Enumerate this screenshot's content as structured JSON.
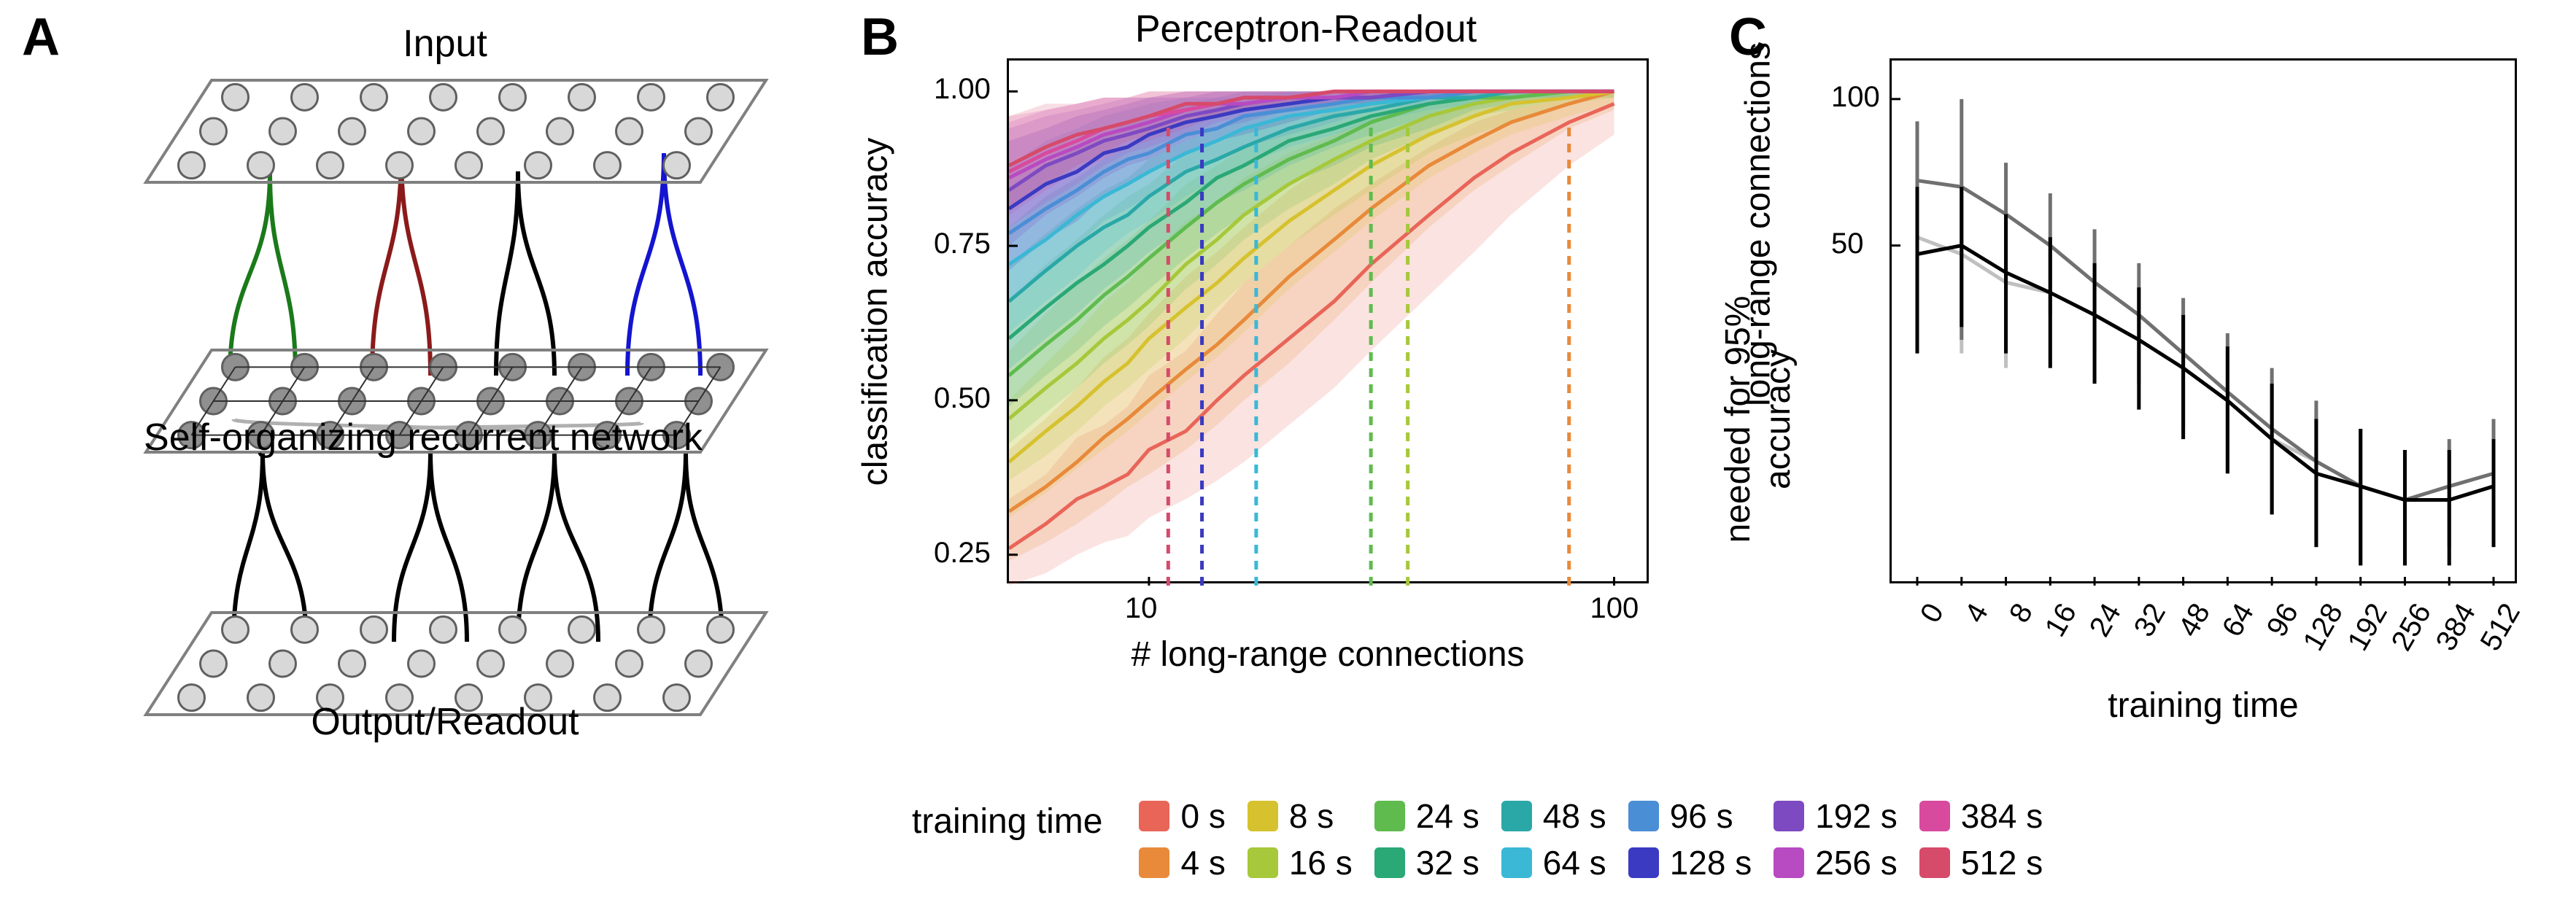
{
  "panelA": {
    "label": "A",
    "input_label": "Input",
    "middle_label": "Self-organizing recurrent network",
    "output_label": "Output/Readout",
    "node_fill_light": "#d8d8d8",
    "node_fill_mid": "#909090",
    "node_stroke": "#606060",
    "conn_colors": {
      "green": "#1a7a1a",
      "red": "#8b1a1a",
      "black": "#000000",
      "blue": "#1414d0",
      "gray": "#b0b0b0"
    },
    "grid_rows": 3,
    "grid_cols": 8
  },
  "panelB": {
    "label": "B",
    "title": "Perceptron-Readout",
    "xlabel": "# long-range connections",
    "ylabel": "classification accuracy",
    "xscale": "log",
    "xlim": [
      5,
      120
    ],
    "ylim": [
      0.2,
      1.05
    ],
    "xticks": [
      10,
      100
    ],
    "xtick_labels": [
      "10",
      "100"
    ],
    "yticks": [
      0.25,
      0.5,
      0.75,
      1.0
    ],
    "ytick_labels": [
      "0.25",
      "0.50",
      "0.75",
      "1.00"
    ],
    "x_values": [
      5,
      6,
      7,
      8,
      9,
      10,
      12,
      14,
      16,
      20,
      25,
      30,
      40,
      50,
      60,
      80,
      100
    ],
    "series": [
      {
        "name": "0 s",
        "color": "#e86558",
        "dash_x": null,
        "y": [
          0.26,
          0.3,
          0.34,
          0.36,
          0.38,
          0.42,
          0.45,
          0.5,
          0.54,
          0.6,
          0.66,
          0.72,
          0.8,
          0.86,
          0.9,
          0.95,
          0.98
        ],
        "lo": [
          0.2,
          0.22,
          0.25,
          0.27,
          0.28,
          0.31,
          0.34,
          0.37,
          0.4,
          0.46,
          0.52,
          0.58,
          0.67,
          0.74,
          0.8,
          0.88,
          0.93
        ],
        "hi": [
          0.34,
          0.38,
          0.44,
          0.46,
          0.49,
          0.54,
          0.58,
          0.64,
          0.69,
          0.75,
          0.81,
          0.85,
          0.91,
          0.95,
          0.97,
          0.99,
          1.0
        ]
      },
      {
        "name": "4 s",
        "color": "#e88a3a",
        "dash_x": 80,
        "y": [
          0.32,
          0.36,
          0.4,
          0.44,
          0.47,
          0.5,
          0.55,
          0.59,
          0.63,
          0.7,
          0.76,
          0.81,
          0.88,
          0.92,
          0.95,
          0.98,
          1.0
        ],
        "lo": [
          0.24,
          0.27,
          0.3,
          0.33,
          0.36,
          0.38,
          0.42,
          0.46,
          0.5,
          0.56,
          0.63,
          0.69,
          0.78,
          0.84,
          0.88,
          0.94,
          0.97
        ],
        "hi": [
          0.42,
          0.47,
          0.52,
          0.57,
          0.6,
          0.64,
          0.7,
          0.74,
          0.78,
          0.84,
          0.89,
          0.92,
          0.96,
          0.98,
          0.99,
          1.0,
          1.0
        ]
      },
      {
        "name": "8 s",
        "color": "#d6c22e",
        "dash_x": null,
        "y": [
          0.4,
          0.45,
          0.49,
          0.53,
          0.56,
          0.6,
          0.65,
          0.69,
          0.73,
          0.79,
          0.84,
          0.88,
          0.93,
          0.96,
          0.98,
          0.99,
          1.0
        ],
        "lo": [
          0.31,
          0.35,
          0.39,
          0.42,
          0.45,
          0.48,
          0.53,
          0.57,
          0.61,
          0.68,
          0.74,
          0.79,
          0.86,
          0.9,
          0.93,
          0.96,
          0.98
        ],
        "hi": [
          0.5,
          0.56,
          0.61,
          0.66,
          0.69,
          0.73,
          0.79,
          0.82,
          0.86,
          0.9,
          0.93,
          0.96,
          0.98,
          0.99,
          1.0,
          1.0,
          1.0
        ]
      },
      {
        "name": "16 s",
        "color": "#a6c83a",
        "dash_x": 36,
        "y": [
          0.47,
          0.52,
          0.56,
          0.6,
          0.63,
          0.66,
          0.72,
          0.76,
          0.8,
          0.85,
          0.89,
          0.92,
          0.96,
          0.98,
          0.99,
          1.0,
          1.0
        ],
        "lo": [
          0.37,
          0.41,
          0.45,
          0.49,
          0.52,
          0.55,
          0.6,
          0.65,
          0.69,
          0.75,
          0.8,
          0.84,
          0.9,
          0.93,
          0.95,
          0.98,
          0.99
        ],
        "hi": [
          0.58,
          0.64,
          0.69,
          0.73,
          0.76,
          0.79,
          0.85,
          0.88,
          0.91,
          0.94,
          0.97,
          0.98,
          0.99,
          1.0,
          1.0,
          1.0,
          1.0
        ]
      },
      {
        "name": "24 s",
        "color": "#5fbb4e",
        "dash_x": 30,
        "y": [
          0.54,
          0.59,
          0.63,
          0.67,
          0.7,
          0.73,
          0.78,
          0.82,
          0.85,
          0.89,
          0.92,
          0.95,
          0.98,
          0.99,
          0.99,
          1.0,
          1.0
        ],
        "lo": [
          0.43,
          0.48,
          0.52,
          0.56,
          0.59,
          0.62,
          0.68,
          0.72,
          0.76,
          0.81,
          0.85,
          0.89,
          0.93,
          0.96,
          0.97,
          0.99,
          0.99
        ],
        "hi": [
          0.66,
          0.72,
          0.76,
          0.8,
          0.83,
          0.85,
          0.9,
          0.92,
          0.94,
          0.96,
          0.98,
          0.99,
          1.0,
          1.0,
          1.0,
          1.0,
          1.0
        ]
      },
      {
        "name": "32 s",
        "color": "#2aa876",
        "dash_x": null,
        "y": [
          0.6,
          0.65,
          0.69,
          0.72,
          0.75,
          0.78,
          0.82,
          0.86,
          0.88,
          0.92,
          0.94,
          0.96,
          0.98,
          0.99,
          1.0,
          1.0,
          1.0
        ],
        "lo": [
          0.49,
          0.54,
          0.58,
          0.62,
          0.65,
          0.68,
          0.73,
          0.77,
          0.8,
          0.85,
          0.88,
          0.91,
          0.94,
          0.97,
          0.98,
          0.99,
          1.0
        ],
        "hi": [
          0.72,
          0.77,
          0.81,
          0.84,
          0.86,
          0.89,
          0.92,
          0.94,
          0.96,
          0.98,
          0.99,
          0.99,
          1.0,
          1.0,
          1.0,
          1.0,
          1.0
        ]
      },
      {
        "name": "48 s",
        "color": "#2aa8a8",
        "dash_x": null,
        "y": [
          0.66,
          0.71,
          0.75,
          0.78,
          0.8,
          0.83,
          0.87,
          0.89,
          0.91,
          0.94,
          0.96,
          0.97,
          0.99,
          0.99,
          1.0,
          1.0,
          1.0
        ],
        "lo": [
          0.55,
          0.6,
          0.64,
          0.68,
          0.71,
          0.74,
          0.78,
          0.82,
          0.84,
          0.88,
          0.91,
          0.93,
          0.96,
          0.98,
          0.99,
          0.99,
          1.0
        ],
        "hi": [
          0.78,
          0.83,
          0.86,
          0.89,
          0.91,
          0.93,
          0.95,
          0.97,
          0.98,
          0.99,
          0.99,
          1.0,
          1.0,
          1.0,
          1.0,
          1.0,
          1.0
        ]
      },
      {
        "name": "64 s",
        "color": "#3ab8d6",
        "dash_x": 17,
        "y": [
          0.72,
          0.76,
          0.8,
          0.83,
          0.85,
          0.87,
          0.9,
          0.92,
          0.94,
          0.96,
          0.97,
          0.98,
          0.99,
          1.0,
          1.0,
          1.0,
          1.0
        ],
        "lo": [
          0.61,
          0.66,
          0.7,
          0.74,
          0.77,
          0.79,
          0.83,
          0.86,
          0.88,
          0.91,
          0.93,
          0.95,
          0.97,
          0.98,
          0.99,
          1.0,
          1.0
        ],
        "hi": [
          0.84,
          0.88,
          0.91,
          0.93,
          0.95,
          0.96,
          0.98,
          0.99,
          0.99,
          1.0,
          1.0,
          1.0,
          1.0,
          1.0,
          1.0,
          1.0,
          1.0
        ]
      },
      {
        "name": "96 s",
        "color": "#4a8ed6",
        "dash_x": null,
        "y": [
          0.77,
          0.81,
          0.84,
          0.87,
          0.89,
          0.9,
          0.93,
          0.94,
          0.96,
          0.97,
          0.98,
          0.99,
          0.99,
          1.0,
          1.0,
          1.0,
          1.0
        ],
        "lo": [
          0.66,
          0.71,
          0.75,
          0.79,
          0.81,
          0.83,
          0.87,
          0.89,
          0.91,
          0.93,
          0.95,
          0.97,
          0.98,
          0.99,
          0.99,
          1.0,
          1.0
        ],
        "hi": [
          0.88,
          0.92,
          0.94,
          0.96,
          0.97,
          0.98,
          0.99,
          0.99,
          1.0,
          1.0,
          1.0,
          1.0,
          1.0,
          1.0,
          1.0,
          1.0,
          1.0
        ]
      },
      {
        "name": "128 s",
        "color": "#3a3ac2",
        "dash_x": 13,
        "y": [
          0.81,
          0.85,
          0.87,
          0.9,
          0.91,
          0.93,
          0.95,
          0.96,
          0.97,
          0.98,
          0.99,
          0.99,
          1.0,
          1.0,
          1.0,
          1.0,
          1.0
        ],
        "lo": [
          0.71,
          0.76,
          0.79,
          0.83,
          0.85,
          0.87,
          0.9,
          0.92,
          0.93,
          0.95,
          0.97,
          0.98,
          0.99,
          0.99,
          1.0,
          1.0,
          1.0
        ],
        "hi": [
          0.92,
          0.94,
          0.96,
          0.97,
          0.98,
          0.99,
          0.99,
          1.0,
          1.0,
          1.0,
          1.0,
          1.0,
          1.0,
          1.0,
          1.0,
          1.0,
          1.0
        ]
      },
      {
        "name": "192 s",
        "color": "#7d4ac2",
        "dash_x": null,
        "y": [
          0.84,
          0.88,
          0.9,
          0.92,
          0.93,
          0.94,
          0.96,
          0.97,
          0.98,
          0.99,
          0.99,
          0.99,
          1.0,
          1.0,
          1.0,
          1.0,
          1.0
        ],
        "lo": [
          0.75,
          0.8,
          0.83,
          0.86,
          0.88,
          0.89,
          0.92,
          0.94,
          0.95,
          0.97,
          0.98,
          0.98,
          0.99,
          1.0,
          1.0,
          1.0,
          1.0
        ],
        "hi": [
          0.94,
          0.96,
          0.97,
          0.98,
          0.99,
          0.99,
          1.0,
          1.0,
          1.0,
          1.0,
          1.0,
          1.0,
          1.0,
          1.0,
          1.0,
          1.0,
          1.0
        ]
      },
      {
        "name": "256 s",
        "color": "#b84ac2",
        "dash_x": null,
        "y": [
          0.86,
          0.89,
          0.91,
          0.93,
          0.94,
          0.95,
          0.97,
          0.98,
          0.98,
          0.99,
          0.99,
          1.0,
          1.0,
          1.0,
          1.0,
          1.0,
          1.0
        ],
        "lo": [
          0.78,
          0.82,
          0.85,
          0.88,
          0.9,
          0.91,
          0.93,
          0.95,
          0.96,
          0.97,
          0.98,
          0.99,
          0.99,
          1.0,
          1.0,
          1.0,
          1.0
        ],
        "hi": [
          0.95,
          0.97,
          0.98,
          0.99,
          0.99,
          0.99,
          1.0,
          1.0,
          1.0,
          1.0,
          1.0,
          1.0,
          1.0,
          1.0,
          1.0,
          1.0,
          1.0
        ]
      },
      {
        "name": "384 s",
        "color": "#d84a9e",
        "dash_x": null,
        "y": [
          0.87,
          0.9,
          0.92,
          0.94,
          0.95,
          0.96,
          0.97,
          0.98,
          0.99,
          0.99,
          1.0,
          1.0,
          1.0,
          1.0,
          1.0,
          1.0,
          1.0
        ],
        "lo": [
          0.8,
          0.84,
          0.87,
          0.89,
          0.91,
          0.92,
          0.94,
          0.96,
          0.97,
          0.98,
          0.98,
          0.99,
          1.0,
          1.0,
          1.0,
          1.0,
          1.0
        ],
        "hi": [
          0.96,
          0.97,
          0.98,
          0.99,
          0.99,
          1.0,
          1.0,
          1.0,
          1.0,
          1.0,
          1.0,
          1.0,
          1.0,
          1.0,
          1.0,
          1.0,
          1.0
        ]
      },
      {
        "name": "512 s",
        "color": "#d64a6a",
        "dash_x": 11,
        "y": [
          0.88,
          0.91,
          0.93,
          0.94,
          0.95,
          0.96,
          0.98,
          0.98,
          0.99,
          0.99,
          1.0,
          1.0,
          1.0,
          1.0,
          1.0,
          1.0,
          1.0
        ],
        "lo": [
          0.81,
          0.85,
          0.88,
          0.9,
          0.92,
          0.93,
          0.95,
          0.96,
          0.97,
          0.98,
          0.99,
          0.99,
          1.0,
          1.0,
          1.0,
          1.0,
          1.0
        ],
        "hi": [
          0.96,
          0.98,
          0.98,
          0.99,
          0.99,
          1.0,
          1.0,
          1.0,
          1.0,
          1.0,
          1.0,
          1.0,
          1.0,
          1.0,
          1.0,
          1.0,
          1.0
        ]
      }
    ]
  },
  "panelC": {
    "label": "C",
    "xlabel": "training time",
    "ylabel_line1": "long-range connections",
    "ylabel_line2": "needed for 95% accuracy",
    "yscale": "log",
    "ylim": [
      10,
      120
    ],
    "yticks": [
      50,
      100
    ],
    "ytick_labels": [
      "50",
      "100"
    ],
    "x_categories": [
      "0",
      "4",
      "8",
      "16",
      "24",
      "32",
      "48",
      "64",
      "96",
      "128",
      "192",
      "256",
      "384",
      "512"
    ],
    "series": [
      {
        "name": "series-light",
        "color": "#c0c0c0",
        "y": [
          52,
          48,
          42,
          40,
          36,
          32,
          28,
          24,
          20,
          18,
          16,
          15,
          15,
          16
        ],
        "err": [
          20,
          18,
          14,
          12,
          10,
          9,
          8,
          7,
          6,
          5,
          5,
          4,
          4,
          4
        ]
      },
      {
        "name": "series-mid",
        "color": "#707070",
        "y": [
          68,
          66,
          58,
          50,
          42,
          36,
          30,
          25,
          21,
          18,
          16,
          15,
          16,
          17
        ],
        "err": [
          22,
          34,
          16,
          14,
          12,
          10,
          9,
          8,
          7,
          6,
          5,
          4,
          4,
          5
        ]
      },
      {
        "name": "series-dark",
        "color": "#000000",
        "y": [
          48,
          50,
          44,
          40,
          36,
          32,
          28,
          24,
          20,
          17,
          16,
          15,
          15,
          16
        ],
        "err": [
          18,
          16,
          14,
          12,
          10,
          9,
          8,
          7,
          6,
          5,
          5,
          4,
          4,
          4
        ]
      }
    ]
  },
  "legend": {
    "title": "training time",
    "items": [
      {
        "label": "0 s",
        "color": "#e86558"
      },
      {
        "label": "4 s",
        "color": "#e88a3a"
      },
      {
        "label": "8 s",
        "color": "#d6c22e"
      },
      {
        "label": "16 s",
        "color": "#a6c83a"
      },
      {
        "label": "24 s",
        "color": "#5fbb4e"
      },
      {
        "label": "32 s",
        "color": "#2aa876"
      },
      {
        "label": "48 s",
        "color": "#2aa8a8"
      },
      {
        "label": "64 s",
        "color": "#3ab8d6"
      },
      {
        "label": "96 s",
        "color": "#4a8ed6"
      },
      {
        "label": "128 s",
        "color": "#3a3ac2"
      },
      {
        "label": "192 s",
        "color": "#7d4ac2"
      },
      {
        "label": "256 s",
        "color": "#b84ac2"
      },
      {
        "label": "384 s",
        "color": "#d84a9e"
      },
      {
        "label": "512 s",
        "color": "#d64a6a"
      }
    ]
  }
}
